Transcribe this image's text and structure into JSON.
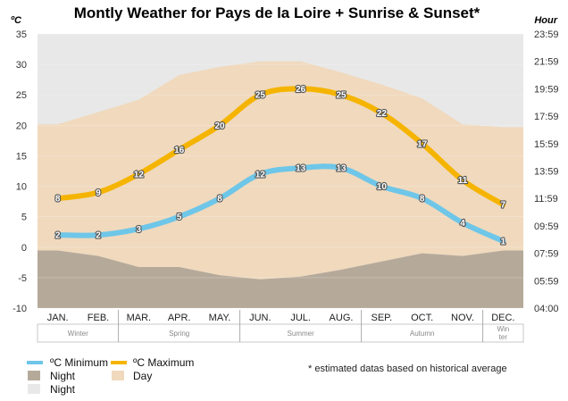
{
  "chart_data": {
    "type": "line",
    "title": "Montly Weather for Pays de la Loire + Sunrise & Sunset*",
    "y_unit_label": "ºC",
    "y2_unit_label": "Hour",
    "ylim": [
      -10,
      35
    ],
    "y_ticks": [
      "35",
      "30",
      "25",
      "20",
      "15",
      "10",
      "5",
      "0",
      "-5",
      "-10"
    ],
    "y2_ticks": [
      "23:59",
      "21:59",
      "19:59",
      "17:59",
      "15:59",
      "13:59",
      "11:59",
      "09:59",
      "07:59",
      "05:59",
      "04:00"
    ],
    "categories": [
      "JAN.",
      "FEB.",
      "MAR.",
      "APR.",
      "MAY.",
      "JUN.",
      "JUL.",
      "AUG.",
      "SEP.",
      "OCT.",
      "NOV.",
      "DEC."
    ],
    "seasons": [
      {
        "name": "Winter",
        "span": [
          0,
          1
        ]
      },
      {
        "name": "Spring",
        "span": [
          2,
          4
        ]
      },
      {
        "name": "Summer",
        "span": [
          5,
          7
        ]
      },
      {
        "name": "Autumn",
        "span": [
          8,
          10
        ]
      },
      {
        "name": "Win\nter",
        "span": [
          11,
          11
        ]
      }
    ],
    "series": [
      {
        "name": "ºC Minimum",
        "color": "#6ec6e8",
        "values": [
          2,
          2,
          3,
          5,
          8,
          12,
          13,
          13,
          10,
          8,
          4,
          1
        ]
      },
      {
        "name": "ºC Maximum",
        "color": "#f5b400",
        "values": [
          8,
          9,
          12,
          16,
          20,
          25,
          26,
          25,
          22,
          17,
          11,
          7
        ]
      }
    ],
    "day_band": {
      "name": "Day",
      "color": "#f0d9bd",
      "sunrise_hours": [
        8.2,
        7.8,
        7.0,
        7.0,
        6.4,
        6.1,
        6.3,
        6.8,
        7.4,
        8.0,
        7.8,
        8.2
      ],
      "sunset_hours": [
        17.4,
        18.3,
        19.2,
        21.0,
        21.6,
        22.0,
        22.0,
        21.2,
        20.3,
        19.3,
        17.4,
        17.2
      ]
    },
    "night_bands": [
      {
        "name": "Night",
        "color": "#b5aa9a"
      },
      {
        "name": "Night",
        "color": "#e8e8e8"
      }
    ],
    "y2_range_hours": [
      4.0,
      24.0
    ]
  },
  "footnote": "* estimated datas based on historical average"
}
